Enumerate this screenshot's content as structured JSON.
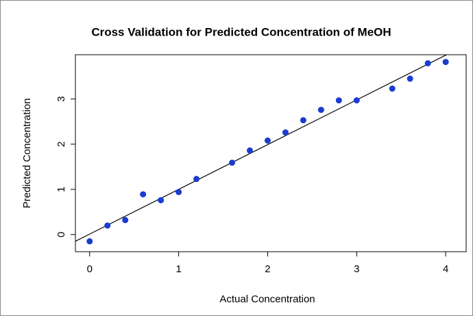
{
  "chart_data": {
    "type": "scatter",
    "title": "Cross Validation for Predicted Concentration of MeOH",
    "x_label": "Actual Concentration",
    "y_label": "Predicted Concentration",
    "series": [
      {
        "color": "#1a3ccf",
        "x": [
          0,
          0.2,
          0.4,
          0.6,
          0.8,
          1.0,
          1.2,
          1.6,
          1.8,
          2.0,
          2.2,
          2.4,
          2.6,
          2.8,
          3.0,
          3.4,
          3.6,
          3.8,
          4.0
        ],
        "values": [
          -0.15,
          0.2,
          0.32,
          0.89,
          0.76,
          0.94,
          1.23,
          1.59,
          1.86,
          2.08,
          2.26,
          2.53,
          2.76,
          2.97,
          2.97,
          3.23,
          3.45,
          3.79,
          3.82
        ]
      }
    ],
    "fit_line": {
      "slope": 0.99,
      "intercept": 0.01
    },
    "xlim": [
      -0.16,
      4.23
    ],
    "ylim": [
      -0.38,
      3.98
    ],
    "xticks": [
      0,
      1,
      2,
      3,
      4
    ],
    "yticks": [
      0,
      1,
      2,
      3
    ]
  }
}
